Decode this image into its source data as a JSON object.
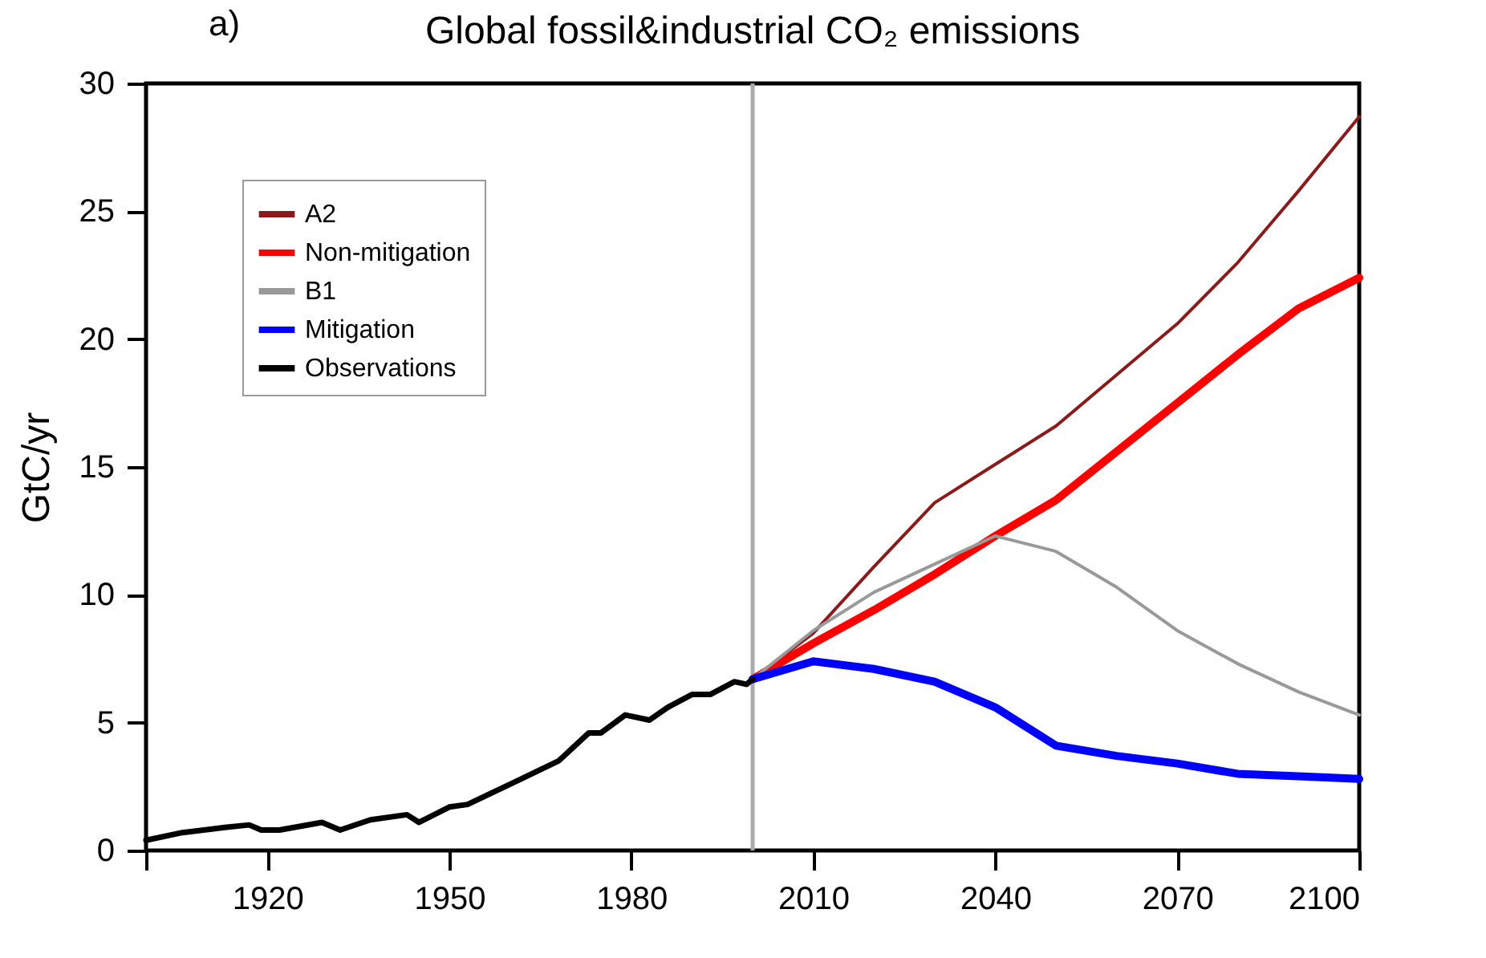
{
  "chart_data": {
    "type": "line",
    "title": "Global fossil&industrial CO₂ emissions",
    "ylabel": "GtC/yr",
    "annotations": [
      "a)"
    ],
    "xlim": [
      1900,
      2100
    ],
    "xticks": [
      {
        "value": 1900,
        "label": null
      },
      1920,
      1950,
      1980,
      2010,
      2040,
      2070,
      2100
    ],
    "ylim": [
      0,
      30
    ],
    "yticks": [
      0,
      5,
      10,
      15,
      20,
      25,
      30
    ],
    "grid": false,
    "legend": "top left",
    "ref_lines": [
      {
        "axis": "x",
        "value": 2000,
        "color": "#aaaaaa"
      }
    ],
    "series": [
      {
        "name": "A2",
        "color": "#8b1a1a",
        "x": [
          2000,
          2010,
          2020,
          2030,
          2040,
          2050,
          2060,
          2070,
          2080,
          2090,
          2100
        ],
        "values": [
          6.7,
          8.5,
          11.1,
          13.6,
          15.1,
          16.6,
          18.6,
          20.6,
          23.0,
          25.8,
          28.7
        ]
      },
      {
        "name": "Non-mitigation",
        "color": "#ff0000",
        "x": [
          2000,
          2010,
          2020,
          2030,
          2040,
          2050,
          2060,
          2070,
          2080,
          2090,
          2100
        ],
        "values": [
          6.7,
          8.1,
          9.4,
          10.8,
          12.3,
          13.7,
          15.6,
          17.5,
          19.4,
          21.2,
          22.4
        ]
      },
      {
        "name": "B1",
        "color": "#999999",
        "x": [
          2000,
          2010,
          2020,
          2030,
          2040,
          2050,
          2060,
          2070,
          2080,
          2090,
          2100
        ],
        "values": [
          6.7,
          8.6,
          10.1,
          11.2,
          12.3,
          11.7,
          10.3,
          8.6,
          7.3,
          6.2,
          5.3
        ]
      },
      {
        "name": "Mitigation",
        "color": "#0000ff",
        "x": [
          2000,
          2010,
          2020,
          2030,
          2040,
          2050,
          2060,
          2070,
          2080,
          2090,
          2100
        ],
        "values": [
          6.7,
          7.4,
          7.1,
          6.6,
          5.6,
          4.1,
          3.7,
          3.4,
          3.0,
          2.9,
          2.8
        ]
      },
      {
        "name": "Observations",
        "color": "#000000",
        "x": [
          1900,
          1906,
          1913,
          1917,
          1919,
          1922,
          1929,
          1932,
          1937,
          1943,
          1945,
          1950,
          1953,
          1961,
          1968,
          1973,
          1975,
          1979,
          1983,
          1986,
          1990,
          1993,
          1997,
          1999,
          2000
        ],
        "values": [
          0.4,
          0.7,
          0.9,
          1.0,
          0.8,
          0.8,
          1.1,
          0.8,
          1.2,
          1.4,
          1.1,
          1.7,
          1.8,
          2.7,
          3.5,
          4.6,
          4.6,
          5.3,
          5.1,
          5.6,
          6.1,
          6.1,
          6.6,
          6.5,
          6.7
        ]
      }
    ]
  }
}
